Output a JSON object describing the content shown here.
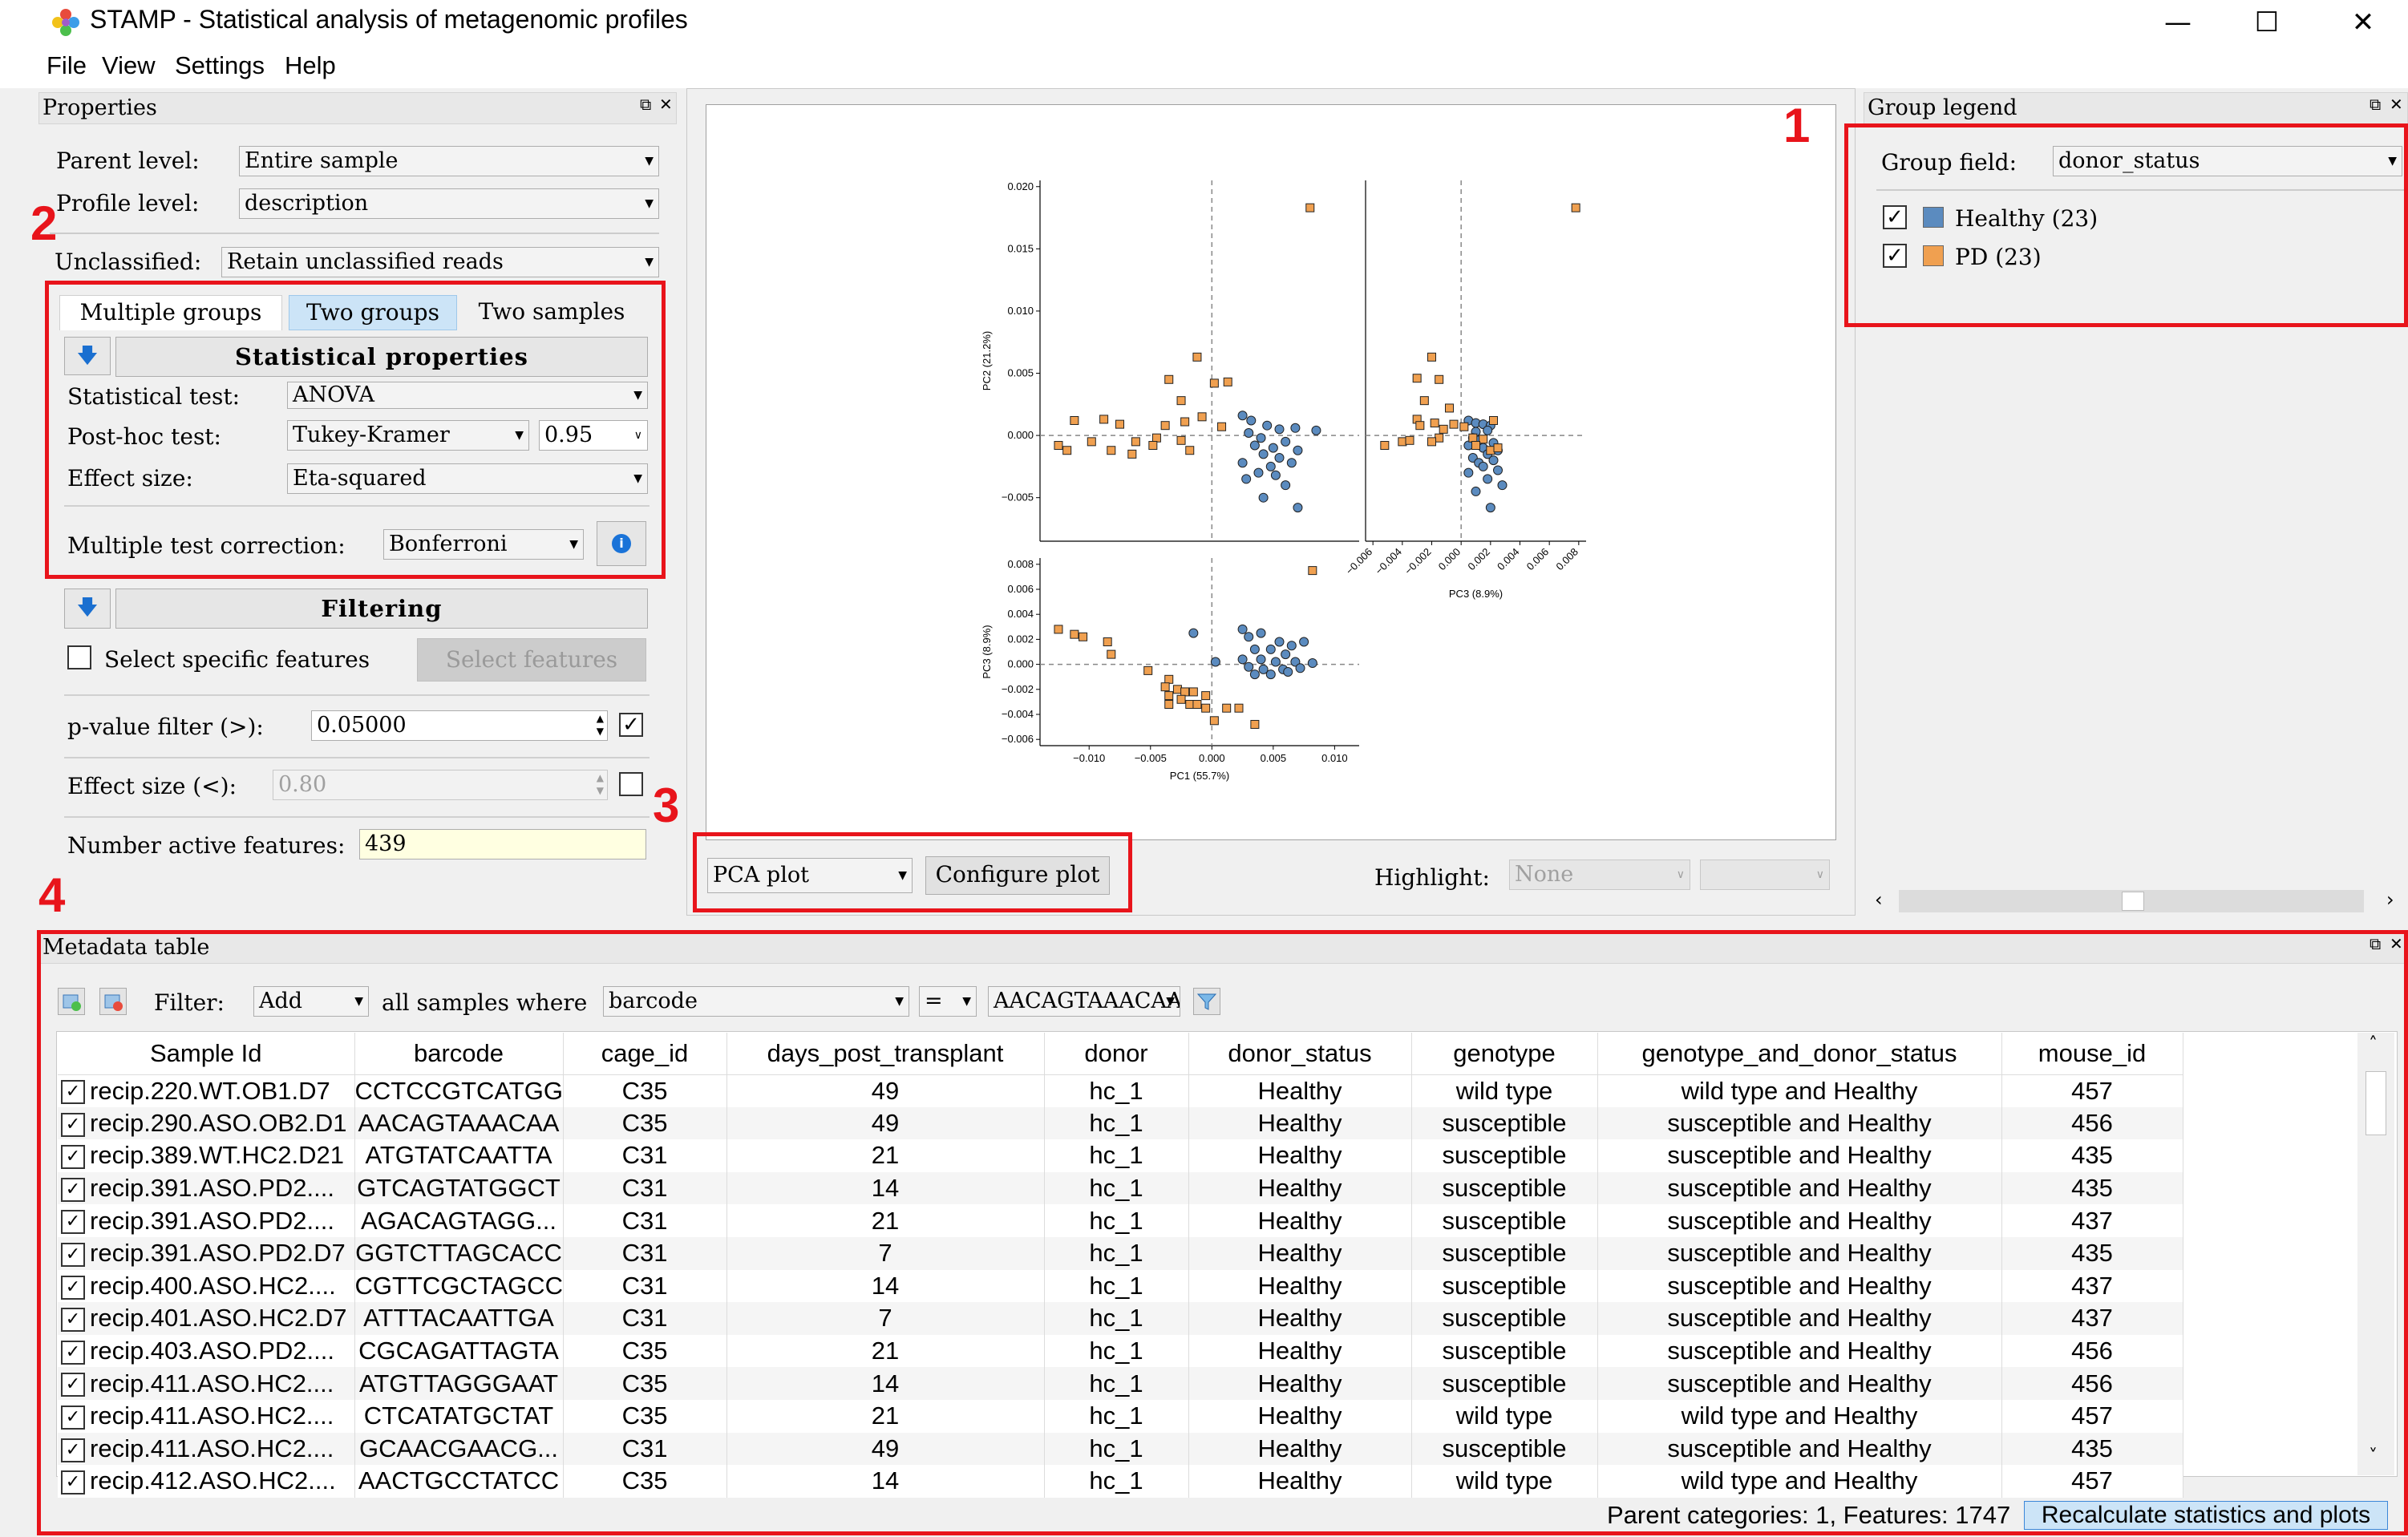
{
  "window": {
    "title": "STAMP - Statistical analysis of metagenomic profiles",
    "minimize": "—",
    "maximize": "☐",
    "close": "✕"
  },
  "menu": [
    "File",
    "View",
    "Settings",
    "Help"
  ],
  "annotations": [
    "1",
    "2",
    "3",
    "4"
  ],
  "properties": {
    "title": "Properties",
    "parent_level_label": "Parent level:",
    "parent_level_value": "Entire sample",
    "profile_level_label": "Profile level:",
    "profile_level_value": "description",
    "unclassified_label": "Unclassified:",
    "unclassified_value": "Retain unclassified reads",
    "tabs": [
      "Multiple groups",
      "Two groups",
      "Two samples"
    ],
    "active_tab": "Two groups",
    "stat_props_title": "Statistical properties",
    "stat_test_label": "Statistical test:",
    "stat_test_value": "ANOVA",
    "posthoc_label": "Post-hoc test:",
    "posthoc_value": "Tukey-Kramer",
    "posthoc_ci": "0.95",
    "effect_size_label": "Effect size:",
    "effect_size_value": "Eta-squared",
    "mtc_label": "Multiple test correction:",
    "mtc_value": "Bonferroni",
    "filtering_title": "Filtering",
    "select_features_label": "Select specific features",
    "select_features_button": "Select features",
    "pvalue_label": "p-value filter (>):",
    "pvalue_value": "0.05000",
    "effect_filter_label": "Effect size (<):",
    "effect_filter_value": "0.80",
    "active_features_label": "Number active features:",
    "active_features_value": "439"
  },
  "plot_panel": {
    "plot_type": "PCA plot",
    "configure_button": "Configure plot",
    "highlight_label": "Highlight:",
    "highlight_value": "None"
  },
  "chart_data": {
    "type": "scatter",
    "title": "",
    "colors": {
      "Healthy": "#5b8bbf",
      "PD": "#f0a050"
    },
    "panels": [
      {
        "id": "pc1-pc2",
        "xlabel": "",
        "ylabel": "PC2 (21.2%)",
        "xlim": [
          -0.014,
          0.012
        ],
        "ylim": [
          -0.0085,
          0.0205
        ],
        "yticks": [
          "0.020",
          "0.015",
          "0.010",
          "0.005",
          "0.000",
          "−0.005"
        ],
        "series": [
          {
            "name": "Healthy",
            "points": [
              [
                0.0025,
                0.0016
              ],
              [
                0.0032,
                0.0012
              ],
              [
                0.0045,
                0.0008
              ],
              [
                0.0055,
                0.0005
              ],
              [
                0.0068,
                0.0006
              ],
              [
                0.0085,
                0.0004
              ],
              [
                0.003,
                0.0002
              ],
              [
                0.004,
                -0.0002
              ],
              [
                0.006,
                -0.0005
              ],
              [
                0.0035,
                -0.0008
              ],
              [
                0.005,
                -0.001
              ],
              [
                0.007,
                -0.0012
              ],
              [
                0.0042,
                -0.0015
              ],
              [
                0.0055,
                -0.0018
              ],
              [
                0.0025,
                -0.0022
              ],
              [
                0.0065,
                -0.0022
              ],
              [
                0.0048,
                -0.0025
              ],
              [
                0.0038,
                -0.003
              ],
              [
                0.0052,
                -0.0032
              ],
              [
                0.0028,
                -0.0035
              ],
              [
                0.006,
                -0.004
              ],
              [
                0.0042,
                -0.005
              ],
              [
                0.007,
                -0.0058
              ]
            ]
          },
          {
            "name": "PD",
            "points": [
              [
                0.008,
                0.0183
              ],
              [
                -0.0012,
                0.0063
              ],
              [
                -0.0035,
                0.0045
              ],
              [
                0.0013,
                0.0043
              ],
              [
                0.0002,
                0.0042
              ],
              [
                -0.0025,
                0.0028
              ],
              [
                -0.0112,
                0.0012
              ],
              [
                -0.0088,
                0.0013
              ],
              [
                -0.0075,
                0.0009
              ],
              [
                -0.0038,
                0.0008
              ],
              [
                -0.0022,
                0.0011
              ],
              [
                -0.0008,
                0.0015
              ],
              [
                0.0008,
                0.0007
              ],
              [
                -0.0062,
                -0.0005
              ],
              [
                -0.0045,
                -0.0002
              ],
              [
                -0.0025,
                -0.0004
              ],
              [
                -0.0018,
                -0.0012
              ],
              [
                -0.0125,
                -0.0008
              ],
              [
                -0.0118,
                -0.0012
              ],
              [
                -0.0098,
                -0.0005
              ],
              [
                -0.0082,
                -0.0012
              ],
              [
                -0.0048,
                -0.0008
              ],
              [
                -0.0065,
                -0.0015
              ]
            ]
          }
        ]
      },
      {
        "id": "pc3-pc2",
        "xlabel": "PC3 (8.9%)",
        "ylabel": "",
        "xlim": [
          -0.0065,
          0.0085
        ],
        "ylim": [
          -0.0085,
          0.0205
        ],
        "xticks": [
          "−0.006",
          "−0.004",
          "−0.002",
          "0.000",
          "0.002",
          "0.004",
          "0.006",
          "0.008"
        ],
        "series": [
          {
            "name": "Healthy",
            "points": [
              [
                0.0005,
                0.0012
              ],
              [
                0.001,
                0.001
              ],
              [
                0.0015,
                0.0009
              ],
              [
                0.002,
                0.0008
              ],
              [
                0.001,
                0.0003
              ],
              [
                0.0018,
                0.0004
              ],
              [
                0.0008,
                -0.0002
              ],
              [
                0.0012,
                -0.0004
              ],
              [
                0.0022,
                -0.0006
              ],
              [
                0.0005,
                -0.0008
              ],
              [
                0.0015,
                -0.001
              ],
              [
                0.0025,
                -0.0012
              ],
              [
                0.0018,
                -0.0015
              ],
              [
                0.0008,
                -0.0018
              ],
              [
                0.0022,
                -0.002
              ],
              [
                0.0012,
                -0.0022
              ],
              [
                0.0015,
                -0.0025
              ],
              [
                0.0025,
                -0.0028
              ],
              [
                0.0005,
                -0.003
              ],
              [
                0.0018,
                -0.0035
              ],
              [
                0.0028,
                -0.004
              ],
              [
                0.001,
                -0.0045
              ],
              [
                0.002,
                -0.0058
              ]
            ]
          },
          {
            "name": "PD",
            "points": [
              [
                0.0078,
                0.0183
              ],
              [
                -0.002,
                0.0063
              ],
              [
                -0.003,
                0.0046
              ],
              [
                -0.0015,
                0.0045
              ],
              [
                -0.0025,
                0.0028
              ],
              [
                -0.0008,
                0.0022
              ],
              [
                0.0022,
                0.0012
              ],
              [
                -0.003,
                0.0013
              ],
              [
                -0.0018,
                0.001
              ],
              [
                -0.0028,
                0.0008
              ],
              [
                -0.0005,
                0.0009
              ],
              [
                -0.0012,
                0.0005
              ],
              [
                0.0002,
                0.0007
              ],
              [
                0.0008,
                -0.0002
              ],
              [
                -0.004,
                -0.0005
              ],
              [
                -0.0015,
                -0.0002
              ],
              [
                0.0015,
                -0.0003
              ],
              [
                0.002,
                -0.0012
              ],
              [
                -0.0052,
                -0.0008
              ],
              [
                -0.0035,
                -0.0004
              ],
              [
                0.001,
                -0.0008
              ],
              [
                0.0025,
                -0.001
              ],
              [
                -0.002,
                -0.0005
              ]
            ]
          }
        ]
      },
      {
        "id": "pc1-pc3",
        "xlabel": "PC1 (55.7%)",
        "ylabel": "PC3 (8.9%)",
        "xlim": [
          -0.014,
          0.012
        ],
        "ylim": [
          -0.0065,
          0.0085
        ],
        "xticks": [
          "−0.010",
          "−0.005",
          "0.000",
          "0.005",
          "0.010"
        ],
        "yticks": [
          "0.008",
          "0.006",
          "0.004",
          "0.002",
          "0.000",
          "−0.002",
          "−0.004",
          "−0.006"
        ],
        "series": [
          {
            "name": "Healthy",
            "points": [
              [
                -0.0015,
                0.0025
              ],
              [
                0.0025,
                0.0028
              ],
              [
                0.003,
                0.0022
              ],
              [
                0.004,
                0.0025
              ],
              [
                0.0055,
                0.0018
              ],
              [
                0.0065,
                0.0015
              ],
              [
                0.0075,
                0.0018
              ],
              [
                0.0035,
                0.0012
              ],
              [
                0.0048,
                0.0012
              ],
              [
                0.006,
                0.0008
              ],
              [
                0.0025,
                0.0004
              ],
              [
                0.004,
                0.0004
              ],
              [
                0.0052,
                0.0002
              ],
              [
                0.0068,
                0.0002
              ],
              [
                0.0082,
                0.0001
              ],
              [
                0.0003,
                0.0002
              ],
              [
                0.003,
                -0.0002
              ],
              [
                0.0042,
                -0.0004
              ],
              [
                0.0058,
                -0.0004
              ],
              [
                0.0072,
                -0.0003
              ],
              [
                0.0035,
                -0.0008
              ],
              [
                0.0048,
                -0.0008
              ],
              [
                0.0062,
                -0.0006
              ]
            ]
          },
          {
            "name": "PD",
            "points": [
              [
                0.0082,
                0.0075
              ],
              [
                -0.0125,
                0.0028
              ],
              [
                -0.0112,
                0.0024
              ],
              [
                -0.0105,
                0.0022
              ],
              [
                -0.0085,
                0.0018
              ],
              [
                -0.0082,
                0.0008
              ],
              [
                -0.0052,
                -0.0005
              ],
              [
                -0.0035,
                -0.0012
              ],
              [
                -0.0038,
                -0.0018
              ],
              [
                -0.0028,
                -0.002
              ],
              [
                -0.0022,
                -0.0022
              ],
              [
                -0.0015,
                -0.0022
              ],
              [
                -0.0005,
                -0.0025
              ],
              [
                -0.0035,
                -0.0025
              ],
              [
                -0.0018,
                -0.0032
              ],
              [
                -0.0025,
                -0.0028
              ],
              [
                -0.0035,
                -0.0032
              ],
              [
                -0.0005,
                -0.0035
              ],
              [
                0.0012,
                -0.0035
              ],
              [
                0.0002,
                -0.0045
              ],
              [
                -0.0012,
                -0.0032
              ],
              [
                0.0022,
                -0.0035
              ],
              [
                0.0035,
                -0.0048
              ]
            ]
          }
        ]
      }
    ]
  },
  "group_legend": {
    "title": "Group legend",
    "group_field_label": "Group field:",
    "group_field_value": "donor_status",
    "items": [
      {
        "label": "Healthy (23)",
        "color": "#5b8bbf"
      },
      {
        "label": "PD (23)",
        "color": "#f0a050"
      }
    ]
  },
  "metadata": {
    "title": "Metadata table",
    "filter_label": "Filter:",
    "filter_op": "Add",
    "filter_text": "all samples where",
    "filter_field": "barcode",
    "filter_cmp": "=",
    "filter_value": "AACAGTAAACAA",
    "columns": [
      "Sample Id",
      "barcode",
      "cage_id",
      "days_post_transplant",
      "donor",
      "donor_status",
      "genotype",
      "genotype_and_donor_status",
      "mouse_id"
    ],
    "rows": [
      [
        "recip.220.WT.OB1.D7",
        "CCTCCGTCATGG",
        "C35",
        "49",
        "hc_1",
        "Healthy",
        "wild type",
        "wild type and Healthy",
        "457"
      ],
      [
        "recip.290.ASO.OB2.D1",
        "AACAGTAAACAA",
        "C35",
        "49",
        "hc_1",
        "Healthy",
        "susceptible",
        "susceptible and Healthy",
        "456"
      ],
      [
        "recip.389.WT.HC2.D21",
        "ATGTATCAATTA",
        "C31",
        "21",
        "hc_1",
        "Healthy",
        "susceptible",
        "susceptible and Healthy",
        "435"
      ],
      [
        "recip.391.ASO.PD2....",
        "GTCAGTATGGCT",
        "C31",
        "14",
        "hc_1",
        "Healthy",
        "susceptible",
        "susceptible and Healthy",
        "435"
      ],
      [
        "recip.391.ASO.PD2....",
        "AGACAGTAGG...",
        "C31",
        "21",
        "hc_1",
        "Healthy",
        "susceptible",
        "susceptible and Healthy",
        "437"
      ],
      [
        "recip.391.ASO.PD2.D7",
        "GGTCTTAGCACC",
        "C31",
        "7",
        "hc_1",
        "Healthy",
        "susceptible",
        "susceptible and Healthy",
        "435"
      ],
      [
        "recip.400.ASO.HC2....",
        "CGTTCGCTAGCC",
        "C31",
        "14",
        "hc_1",
        "Healthy",
        "susceptible",
        "susceptible and Healthy",
        "437"
      ],
      [
        "recip.401.ASO.HC2.D7",
        "ATTTACAATTGA",
        "C31",
        "7",
        "hc_1",
        "Healthy",
        "susceptible",
        "susceptible and Healthy",
        "437"
      ],
      [
        "recip.403.ASO.PD2....",
        "CGCAGATTAGTA",
        "C35",
        "21",
        "hc_1",
        "Healthy",
        "susceptible",
        "susceptible and Healthy",
        "456"
      ],
      [
        "recip.411.ASO.HC2....",
        "ATGTTAGGGAAT",
        "C35",
        "14",
        "hc_1",
        "Healthy",
        "susceptible",
        "susceptible and Healthy",
        "456"
      ],
      [
        "recip.411.ASO.HC2....",
        "CTCATATGCTAT",
        "C35",
        "21",
        "hc_1",
        "Healthy",
        "wild type",
        "wild type and Healthy",
        "457"
      ],
      [
        "recip.411.ASO.HC2....",
        "GCAACGAACG...",
        "C31",
        "49",
        "hc_1",
        "Healthy",
        "susceptible",
        "susceptible and Healthy",
        "435"
      ],
      [
        "recip.412.ASO.HC2....",
        "AACTGCCTATCC",
        "C35",
        "14",
        "hc_1",
        "Healthy",
        "wild type",
        "wild type and Healthy",
        "457"
      ]
    ]
  },
  "status": {
    "text": "Parent categories: 1, Features: 1747",
    "recalc_button": "Recalculate statistics and plots"
  }
}
